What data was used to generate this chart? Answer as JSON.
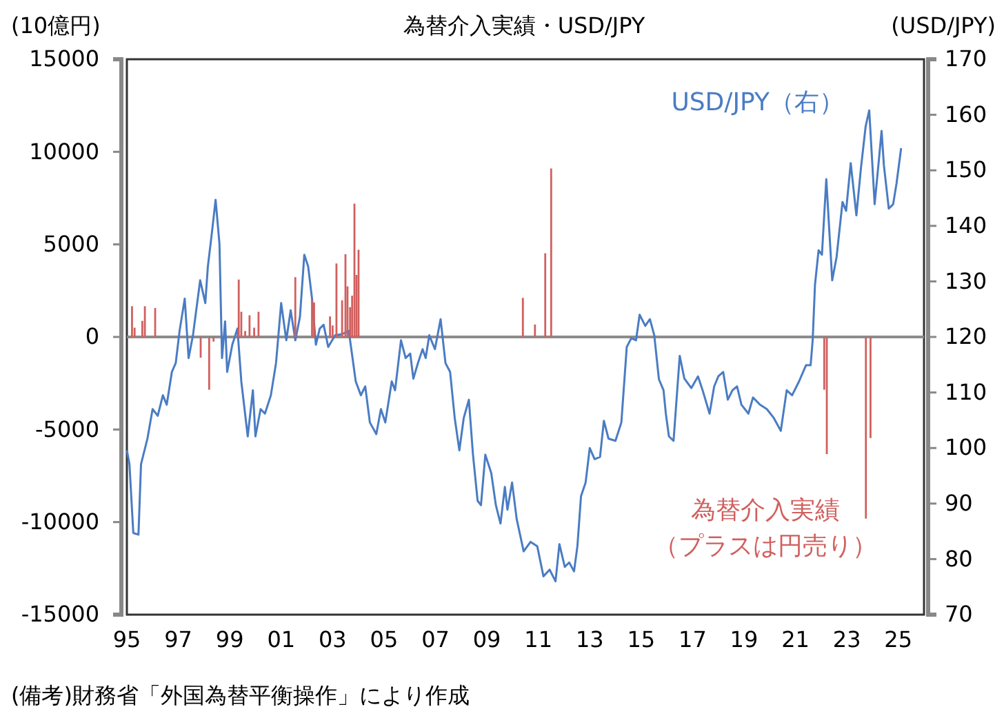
{
  "chart_data": {
    "type": "bar",
    "title": "為替介入実績・USD/JPY",
    "ylabel": "(10億円)",
    "y2label": "(USD/JPY)",
    "xlim": [
      1995,
      2026
    ],
    "xticks": [
      {
        "value": 1995,
        "label": "95"
      },
      {
        "value": 1997,
        "label": "97"
      },
      {
        "value": 1999,
        "label": "99"
      },
      {
        "value": 2001,
        "label": "01"
      },
      {
        "value": 2003,
        "label": "03"
      },
      {
        "value": 2005,
        "label": "05"
      },
      {
        "value": 2007,
        "label": "07"
      },
      {
        "value": 2009,
        "label": "09"
      },
      {
        "value": 2011,
        "label": "11"
      },
      {
        "value": 2013,
        "label": "13"
      },
      {
        "value": 2015,
        "label": "15"
      },
      {
        "value": 2017,
        "label": "17"
      },
      {
        "value": 2019,
        "label": "19"
      },
      {
        "value": 2021,
        "label": "21"
      },
      {
        "value": 2023,
        "label": "23"
      },
      {
        "value": 2025,
        "label": "25"
      }
    ],
    "ylim": [
      -15000,
      15000
    ],
    "yticks": [
      -15000,
      -10000,
      -5000,
      0,
      5000,
      10000,
      15000
    ],
    "y2lim": [
      70,
      170
    ],
    "y2ticks": [
      70,
      80,
      90,
      100,
      110,
      120,
      130,
      140,
      150,
      160,
      170
    ],
    "grid": false,
    "legend": false,
    "ref_lines": [
      {
        "axis": "y",
        "value": 0,
        "color": "#8c8c8c"
      }
    ],
    "series": [
      {
        "name": "為替介入実績",
        "color": "#d0605e",
        "x": [
          1995.2,
          1995.3,
          1995.6,
          1995.7,
          1996.1,
          1997.87,
          1998.2,
          1998.37,
          1999.35,
          1999.45,
          1999.6,
          1999.77,
          1999.95,
          2000.12,
          2001.55,
          2002.2,
          2002.28,
          2002.9,
          2003.0,
          2003.15,
          2003.37,
          2003.5,
          2003.58,
          2003.68,
          2003.76,
          2003.85,
          2003.93,
          2004.01,
          2010.4,
          2010.87,
          2011.27,
          2011.5,
          2022.12,
          2022.22,
          2023.74,
          2023.92
        ],
        "values": [
          1660,
          500,
          870,
          1660,
          1560,
          -1120,
          -2850,
          -250,
          3100,
          1360,
          320,
          1170,
          500,
          1360,
          3230,
          1980,
          1860,
          1110,
          620,
          3970,
          1980,
          4470,
          2730,
          1610,
          2230,
          7200,
          3350,
          4710,
          2110,
          670,
          4520,
          9100,
          -2850,
          -6330,
          -9810,
          -5460
        ]
      },
      {
        "type": "line",
        "name": "USD/JPY（右）",
        "color": "#4a7cc3",
        "axis": "y2",
        "x": [
          1995.0,
          1995.1,
          1995.25,
          1995.45,
          1995.55,
          1995.8,
          1996.0,
          1996.2,
          1996.4,
          1996.55,
          1996.75,
          1996.9,
          1997.05,
          1997.25,
          1997.4,
          1997.57,
          1997.85,
          1998.05,
          1998.15,
          1998.3,
          1998.45,
          1998.6,
          1998.7,
          1998.82,
          1998.9,
          1999.1,
          1999.3,
          1999.45,
          1999.7,
          1999.9,
          2000.0,
          2000.2,
          2000.37,
          2000.6,
          2000.8,
          2001.0,
          2001.2,
          2001.37,
          2001.55,
          2001.73,
          2001.9,
          2002.05,
          2002.2,
          2002.35,
          2002.5,
          2002.65,
          2002.83,
          2003.1,
          2003.37,
          2003.63,
          2003.9,
          2004.1,
          2004.27,
          2004.45,
          2004.7,
          2004.88,
          2005.05,
          2005.3,
          2005.43,
          2005.66,
          2005.84,
          2006.02,
          2006.14,
          2006.32,
          2006.5,
          2006.62,
          2006.76,
          2006.98,
          2007.2,
          2007.39,
          2007.57,
          2007.75,
          2007.93,
          2008.1,
          2008.3,
          2008.46,
          2008.64,
          2008.77,
          2008.94,
          2009.17,
          2009.35,
          2009.53,
          2009.7,
          2009.8,
          2009.98,
          2010.16,
          2010.43,
          2010.7,
          2010.96,
          2011.2,
          2011.44,
          2011.67,
          2011.82,
          2012.03,
          2012.2,
          2012.39,
          2012.52,
          2012.66,
          2012.84,
          2013.0,
          2013.19,
          2013.4,
          2013.55,
          2013.73,
          2014.0,
          2014.23,
          2014.44,
          2014.62,
          2014.8,
          2014.94,
          2015.16,
          2015.34,
          2015.51,
          2015.69,
          2015.87,
          2015.96,
          2016.08,
          2016.26,
          2016.5,
          2016.68,
          2016.95,
          2017.21,
          2017.39,
          2017.66,
          2017.84,
          2018.0,
          2018.19,
          2018.37,
          2018.55,
          2018.73,
          2018.9,
          2019.17,
          2019.35,
          2019.62,
          2019.89,
          2020.16,
          2020.43,
          2020.66,
          2020.87,
          2021.14,
          2021.41,
          2021.59,
          2021.67,
          2021.76,
          2021.9,
          2022.03,
          2022.2,
          2022.43,
          2022.6,
          2022.83,
          2022.97,
          2023.15,
          2023.37,
          2023.55,
          2023.73,
          2023.87,
          2024.08,
          2024.26,
          2024.35,
          2024.44,
          2024.63,
          2024.8,
          2024.93,
          2025.11
        ],
        "values": [
          99.6,
          97.1,
          84.7,
          84.4,
          97.1,
          101.7,
          107.0,
          105.8,
          109.5,
          107.8,
          113.7,
          115.3,
          121.1,
          126.9,
          116.2,
          120.3,
          130.2,
          126.1,
          132.7,
          138.5,
          144.7,
          136.8,
          116.2,
          122.8,
          113.7,
          118.6,
          121.5,
          112.0,
          102.1,
          110.4,
          102.1,
          107.0,
          106.2,
          109.5,
          115.3,
          126.1,
          119.4,
          124.8,
          119.4,
          123.6,
          134.8,
          132.7,
          126.9,
          118.6,
          121.5,
          122.2,
          118.2,
          120.3,
          120.5,
          121.1,
          112.0,
          109.5,
          111.1,
          104.6,
          102.5,
          107.0,
          104.6,
          112.0,
          110.4,
          119.4,
          116.2,
          117.0,
          112.5,
          115.3,
          117.8,
          116.2,
          120.3,
          117.8,
          123.2,
          115.3,
          113.7,
          105.4,
          99.6,
          105.4,
          108.7,
          98.8,
          90.5,
          89.7,
          98.8,
          95.5,
          89.7,
          86.4,
          93.0,
          88.9,
          93.8,
          87.2,
          81.4,
          83.1,
          82.3,
          76.9,
          78.1,
          76.0,
          82.7,
          78.6,
          79.4,
          77.8,
          82.3,
          91.3,
          93.8,
          100.0,
          98.0,
          98.4,
          104.9,
          101.7,
          101.3,
          104.6,
          118.2,
          119.8,
          119.4,
          124.0,
          122.0,
          123.2,
          120.3,
          112.4,
          110.4,
          106.2,
          102.1,
          101.3,
          116.6,
          112.5,
          110.8,
          112.9,
          110.4,
          106.2,
          111.1,
          112.9,
          113.7,
          108.7,
          110.4,
          111.1,
          107.8,
          106.2,
          109.1,
          107.8,
          107.0,
          105.4,
          103.1,
          110.4,
          109.5,
          112.0,
          114.9,
          114.9,
          119.4,
          129.4,
          135.6,
          134.8,
          148.4,
          130.2,
          134.4,
          144.3,
          142.7,
          151.3,
          141.9,
          150.5,
          157.9,
          160.8,
          143.9,
          152.6,
          157.1,
          150.9,
          143.1,
          143.9,
          147.6,
          154.0
        ]
      }
    ],
    "annotations": [
      "（プラスは円売り）",
      "(備考)財務省「外国為替平衡操作」により作成"
    ]
  }
}
